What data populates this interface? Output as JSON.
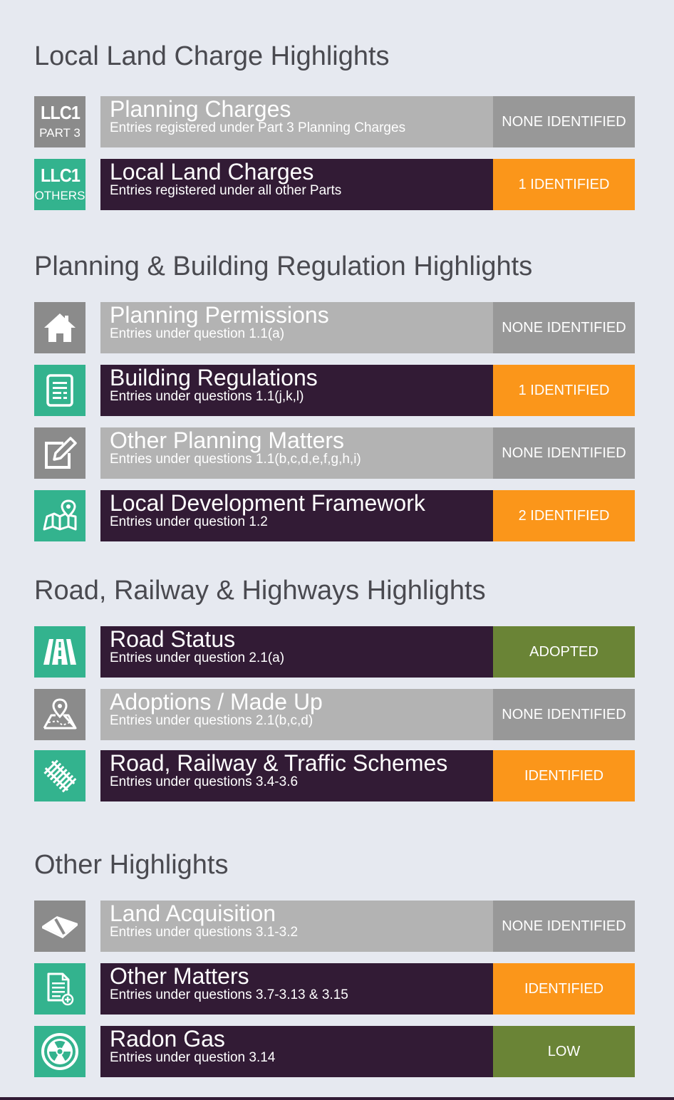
{
  "sections": [
    {
      "title": "Local Land Charge Highlights",
      "rows": [
        {
          "icon": "llc1-part3-icon",
          "icon_top": "LLC1",
          "icon_bottom": "PART 3",
          "title": "Planning Charges",
          "subtitle": "Entries registered under Part 3 Planning Charges",
          "status": "NONE IDENTIFIED"
        },
        {
          "icon": "llc1-others-icon",
          "icon_top": "LLC1",
          "icon_bottom": "OTHERS",
          "title": "Local Land Charges",
          "subtitle": "Entries registered under all other Parts",
          "status": "1 IDENTIFIED"
        }
      ]
    },
    {
      "title": "Planning & Building Regulation Highlights",
      "rows": [
        {
          "icon": "house-icon",
          "title": "Planning Permissions",
          "subtitle": "Entries under question 1.1(a)",
          "status": "NONE IDENTIFIED"
        },
        {
          "icon": "document-list-icon",
          "title": "Building Regulations",
          "subtitle": "Entries under questions 1.1(j,k,l)",
          "status": "1 IDENTIFIED"
        },
        {
          "icon": "edit-icon",
          "title": "Other Planning Matters",
          "subtitle": "Entries under questions 1.1(b,c,d,e,f,g,h,i)",
          "status": "NONE IDENTIFIED"
        },
        {
          "icon": "map-pin-icon",
          "title": "Local Development Framework",
          "subtitle": "Entries under question 1.2",
          "status": "2 IDENTIFIED"
        }
      ]
    },
    {
      "title": "Road, Railway & Highways Highlights",
      "rows": [
        {
          "icon": "road-icon",
          "title": "Road Status",
          "subtitle": "Entries under question 2.1(a)",
          "status": "ADOPTED"
        },
        {
          "icon": "location-map-icon",
          "title": "Adoptions / Made Up",
          "subtitle": "Entries under questions 2.1(b,c,d)",
          "status": "NONE IDENTIFIED"
        },
        {
          "icon": "railway-icon",
          "title": "Road, Railway & Traffic Schemes",
          "subtitle": "Entries under questions 3.4-3.6",
          "status": "IDENTIFIED"
        }
      ]
    },
    {
      "title": "Other Highlights",
      "rows": [
        {
          "icon": "land-parcel-icon",
          "title": "Land Acquisition",
          "subtitle": "Entries under questions 3.1-3.2",
          "status": "NONE IDENTIFIED"
        },
        {
          "icon": "document-add-icon",
          "title": "Other Matters",
          "subtitle": "Entries under questions 3.7-3.13 & 3.15",
          "status": "IDENTIFIED"
        },
        {
          "icon": "radiation-icon",
          "title": "Radon Gas",
          "subtitle": "Entries under question 3.14",
          "status": "LOW"
        }
      ]
    }
  ],
  "colors": {
    "background": "#e6e9f0",
    "bar_grey": "#b3b3b3",
    "bar_dark": "#321b35",
    "icon_grey": "#8b8b8b",
    "icon_green": "#33b38e",
    "status_none": "#989898",
    "status_orange": "#fb961a",
    "status_olive": "#6a8436"
  }
}
